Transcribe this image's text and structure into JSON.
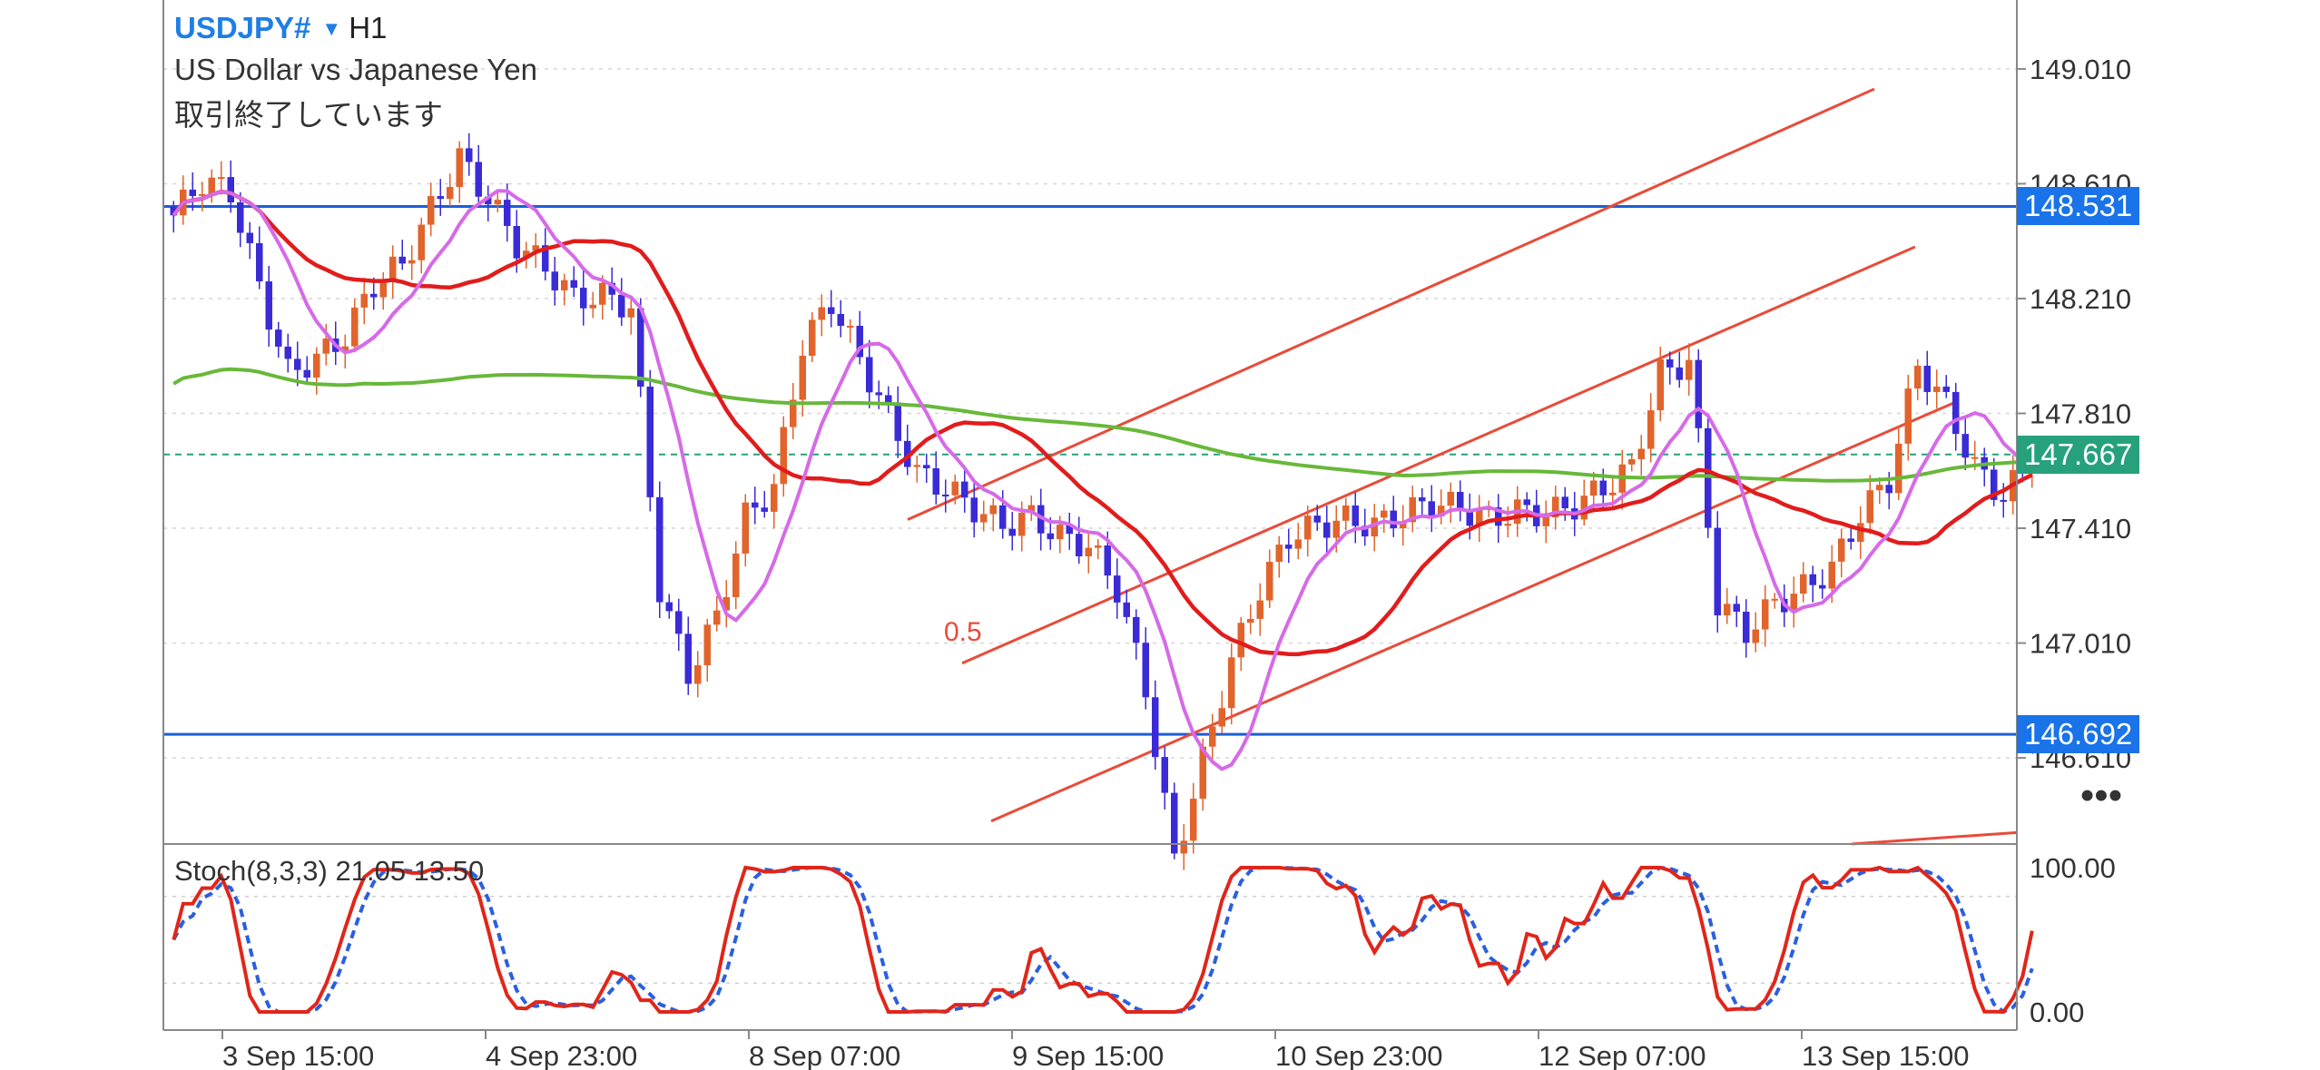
{
  "header": {
    "symbol": "USDJPY#",
    "timeframe": "H1",
    "description": "US Dollar vs Japanese Yen",
    "status": "取引終了しています"
  },
  "price_axis": {
    "labels": [
      "149.010",
      "148.610",
      "148.210",
      "147.810",
      "147.410",
      "147.010",
      "146.610"
    ],
    "ymin": 146.31,
    "ymax": 149.25
  },
  "tags": {
    "resistance": "148.531",
    "current": "147.667",
    "support": "146.692"
  },
  "stoch": {
    "label": "Stoch(8,3,3) 21.05 13.50",
    "axis_labels": [
      "100.00",
      "0.00"
    ],
    "level_lines": [
      80,
      20
    ]
  },
  "time_axis": [
    "3 Sep 15:00",
    "4 Sep 23:00",
    "8 Sep 07:00",
    "9 Sep 15:00",
    "10 Sep 23:00",
    "12 Sep 07:00",
    "13 Sep 15:00"
  ],
  "more_label": "•••",
  "annotation": "0.5",
  "colors": {
    "bull": "#e0642c",
    "bear": "#3a2bd6",
    "ma_fast": "#d66ae8",
    "ma_mid": "#e11c1c",
    "ma_slow": "#68b83a",
    "channel": "#e84b3a",
    "level_line": "#1a5fd6",
    "current_tag": "#26a17b",
    "level_tag": "#1a73e8",
    "stoch_main": "#e0261a",
    "stoch_signal": "#2a5fe0"
  },
  "chart_data": {
    "type": "candlestick",
    "symbol": "USDJPY#",
    "timeframe": "H1",
    "ylim": [
      146.31,
      149.25
    ],
    "ohlc_anchor_closes": [
      148.5,
      148.62,
      148.58,
      148.25,
      147.95,
      148.0,
      148.08,
      148.26,
      148.33,
      148.52,
      148.7,
      148.56,
      148.4,
      148.32,
      148.21,
      148.22,
      148.18,
      147.2,
      146.9,
      147.1,
      147.45,
      147.55,
      148.05,
      148.2,
      148.0,
      147.8,
      147.6,
      147.55,
      147.48,
      147.42,
      147.45,
      147.38,
      147.35,
      147.2,
      146.85,
      146.25,
      146.6,
      146.95,
      147.2,
      147.38,
      147.42,
      147.44,
      147.42,
      147.46,
      147.5,
      147.48,
      147.44,
      147.47,
      147.46,
      147.49,
      147.55,
      147.62,
      147.95,
      147.99,
      147.15,
      147.05,
      147.15,
      147.2,
      147.27,
      147.46,
      147.58,
      147.98,
      147.84,
      147.62,
      147.52,
      147.65
    ],
    "level_lines": [
      148.531,
      146.692
    ],
    "current_price": 147.667,
    "stochastic": {
      "params": "8,3,3",
      "main": 21.05,
      "signal": 13.5
    }
  }
}
